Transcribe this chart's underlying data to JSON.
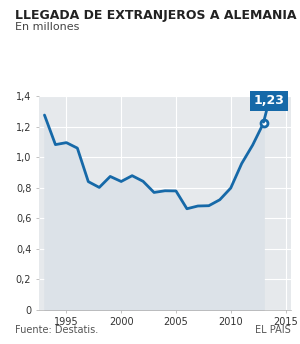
{
  "title": "LLEGADA DE EXTRANJEROS A ALEMANIA",
  "subtitle": "En millones",
  "source": "Fuente: Destatis.",
  "source_right": "EL PAÍS",
  "years": [
    1993,
    1994,
    1995,
    1996,
    1997,
    1998,
    1999,
    2000,
    2001,
    2002,
    2003,
    2004,
    2005,
    2006,
    2007,
    2008,
    2009,
    2010,
    2011,
    2012,
    2013
  ],
  "values": [
    1.277,
    1.083,
    1.096,
    1.06,
    0.84,
    0.802,
    0.874,
    0.841,
    0.879,
    0.842,
    0.769,
    0.78,
    0.779,
    0.662,
    0.68,
    0.682,
    0.721,
    0.798,
    0.959,
    1.08,
    1.226
  ],
  "ylim": [
    0,
    1.4
  ],
  "yticks": [
    0,
    0.2,
    0.4,
    0.6,
    0.8,
    1.0,
    1.2,
    1.4
  ],
  "ytick_labels": [
    "0",
    "0,2",
    "0,4",
    "0,6",
    "0,8",
    "1,0",
    "1,2",
    "1,4"
  ],
  "xlim": [
    1992.5,
    2015.5
  ],
  "xticks": [
    1995,
    2000,
    2005,
    2010,
    2015
  ],
  "line_color": "#1669a8",
  "fill_color": "#dce2e8",
  "annotation_value": "1,23",
  "annotation_box_color": "#1669a8",
  "annotation_text_color": "#ffffff",
  "last_point_year": 2013,
  "last_point_value": 1.226,
  "bg_color": "#e6e9ec",
  "title_fontsize": 9,
  "subtitle_fontsize": 8,
  "tick_fontsize": 7,
  "source_fontsize": 7
}
